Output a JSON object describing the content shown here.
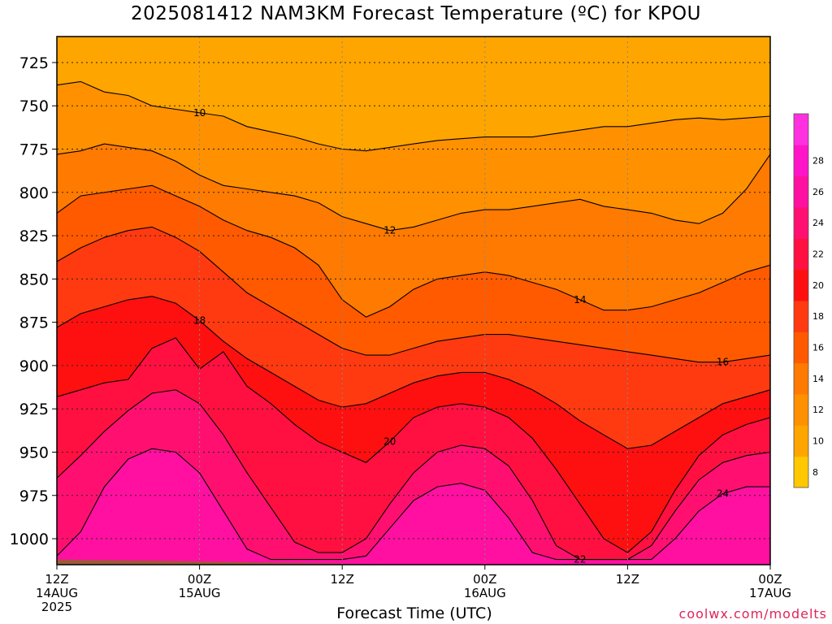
{
  "chart_data": {
    "type": "heatmap",
    "title": "2025081412 NAM3KM Forecast Temperature (ºC) for KPOU",
    "xlabel": "Forecast Time (UTC)",
    "ylabel": "",
    "credit": "coolwx.com/modelts",
    "y_axis": {
      "ticks": [
        725,
        750,
        775,
        800,
        825,
        850,
        875,
        900,
        925,
        950,
        975,
        1000
      ],
      "range": [
        710,
        1015
      ],
      "grid": true
    },
    "x_axis": {
      "range_hours": [
        0,
        60
      ],
      "ticks": [
        {
          "hour": 0,
          "label": "12Z",
          "sub": "14AUG",
          "sub2": "2025"
        },
        {
          "hour": 12,
          "label": "00Z",
          "sub": "15AUG",
          "sub2": ""
        },
        {
          "hour": 24,
          "label": "12Z",
          "sub": "",
          "sub2": ""
        },
        {
          "hour": 36,
          "label": "00Z",
          "sub": "16AUG",
          "sub2": ""
        },
        {
          "hour": 48,
          "label": "12Z",
          "sub": "",
          "sub2": ""
        },
        {
          "hour": 60,
          "label": "00Z",
          "sub": "17AUG",
          "sub2": ""
        }
      ],
      "grid": true
    },
    "colorbar": {
      "labels": [
        "8",
        "10",
        "12",
        "14",
        "16",
        "18",
        "20",
        "22",
        "24",
        "26",
        "28"
      ],
      "levels": [
        8,
        10,
        12,
        14,
        16,
        18,
        20,
        22,
        24,
        26,
        28
      ],
      "colors": [
        "#ffc800",
        "#ffa500",
        "#ff9000",
        "#ff7a00",
        "#ff5a00",
        "#ff3a10",
        "#ff1010",
        "#ff1040",
        "#ff1070",
        "#ff10a0",
        "#ff14c8",
        "#ff30e0"
      ]
    },
    "isotherms": [
      {
        "value": 10,
        "label": "10",
        "hours": [
          0,
          2,
          4,
          6,
          8,
          10,
          12,
          14,
          16,
          18,
          20,
          22,
          24,
          26,
          28,
          30,
          32,
          34,
          36,
          38,
          40,
          42,
          44,
          46,
          48,
          50,
          52,
          54,
          56,
          58,
          60
        ],
        "pressure": [
          738,
          736,
          742,
          744,
          750,
          752,
          754,
          756,
          762,
          765,
          768,
          772,
          775,
          776,
          774,
          772,
          770,
          769,
          768,
          768,
          768,
          766,
          764,
          762,
          762,
          760,
          758,
          757,
          758,
          757,
          756
        ]
      },
      {
        "value": 12,
        "label": "12",
        "hours": [
          0,
          2,
          4,
          6,
          8,
          10,
          12,
          14,
          16,
          18,
          20,
          22,
          24,
          26,
          28,
          30,
          32,
          34,
          36,
          38,
          40,
          42,
          44,
          46,
          48,
          50,
          52,
          54,
          56,
          58,
          60
        ],
        "pressure": [
          778,
          776,
          772,
          774,
          776,
          782,
          790,
          796,
          798,
          800,
          802,
          806,
          814,
          818,
          822,
          820,
          816,
          812,
          810,
          810,
          808,
          806,
          804,
          808,
          810,
          812,
          816,
          818,
          812,
          798,
          778
        ]
      },
      {
        "value": 14,
        "label": "14",
        "hours": [
          0,
          2,
          4,
          6,
          8,
          10,
          12,
          14,
          16,
          18,
          20,
          22,
          24,
          26,
          28,
          30,
          32,
          34,
          36,
          38,
          40,
          42,
          44,
          46,
          48,
          50,
          52,
          54,
          56,
          58,
          60
        ],
        "pressure": [
          812,
          802,
          800,
          798,
          796,
          802,
          808,
          816,
          822,
          826,
          832,
          842,
          862,
          872,
          866,
          856,
          850,
          848,
          846,
          848,
          852,
          856,
          862,
          868,
          868,
          866,
          862,
          858,
          852,
          846,
          842
        ]
      },
      {
        "value": 16,
        "label": "16",
        "hours": [
          0,
          2,
          4,
          6,
          8,
          10,
          12,
          14,
          16,
          18,
          20,
          22,
          24,
          26,
          28,
          30,
          32,
          34,
          36,
          38,
          40,
          42,
          44,
          46,
          48,
          50,
          52,
          54,
          56,
          58,
          60
        ],
        "pressure": [
          840,
          832,
          826,
          822,
          820,
          826,
          834,
          846,
          858,
          866,
          874,
          882,
          890,
          894,
          894,
          890,
          886,
          884,
          882,
          882,
          884,
          886,
          888,
          890,
          892,
          894,
          896,
          898,
          898,
          896,
          894
        ]
      },
      {
        "value": 18,
        "label": "18",
        "hours": [
          0,
          2,
          4,
          6,
          8,
          10,
          12,
          14,
          16,
          18,
          20,
          22,
          24,
          26,
          28,
          30,
          32,
          34,
          36,
          38,
          40,
          42,
          44,
          46,
          48,
          50,
          52,
          54,
          56,
          58,
          60
        ],
        "pressure": [
          878,
          870,
          866,
          862,
          860,
          864,
          874,
          886,
          896,
          904,
          912,
          920,
          924,
          922,
          916,
          910,
          906,
          904,
          904,
          908,
          914,
          922,
          932,
          940,
          948,
          946,
          938,
          930,
          922,
          918,
          914
        ]
      },
      {
        "value": 20,
        "label": "20",
        "hours": [
          0,
          2,
          4,
          6,
          8,
          10,
          12,
          14,
          16,
          18,
          20,
          22,
          24,
          26,
          28,
          30,
          32,
          34,
          36,
          38,
          40,
          42,
          44,
          46,
          48,
          50,
          52,
          54,
          56,
          58,
          60
        ],
        "pressure": [
          918,
          914,
          910,
          908,
          890,
          884,
          902,
          892,
          912,
          922,
          934,
          944,
          950,
          956,
          944,
          930,
          924,
          922,
          924,
          930,
          942,
          960,
          980,
          1000,
          1008,
          996,
          972,
          952,
          940,
          934,
          930
        ]
      },
      {
        "value": 22,
        "label": "22",
        "hours": [
          0,
          2,
          4,
          6,
          8,
          10,
          12,
          14,
          16,
          18,
          20,
          22,
          24,
          26,
          28,
          30,
          32,
          34,
          36,
          38,
          40,
          42,
          44,
          46,
          48,
          50,
          52,
          54,
          56,
          58,
          60
        ],
        "pressure": [
          965,
          952,
          938,
          926,
          916,
          914,
          922,
          940,
          962,
          982,
          1002,
          1008,
          1008,
          1000,
          980,
          962,
          950,
          946,
          948,
          958,
          978,
          1004,
          1012,
          1012,
          1012,
          1004,
          984,
          966,
          956,
          952,
          950
        ]
      },
      {
        "value": 24,
        "label": "24",
        "hours": [
          0,
          2,
          4,
          6,
          8,
          10,
          12,
          14,
          16,
          18,
          20,
          22,
          24,
          26,
          28,
          30,
          32,
          34,
          36,
          38,
          40,
          42,
          44,
          46,
          48,
          50,
          52,
          54,
          56,
          58,
          60
        ],
        "pressure": [
          1010,
          996,
          970,
          954,
          948,
          950,
          962,
          984,
          1006,
          1012,
          1012,
          1012,
          1012,
          1010,
          994,
          978,
          970,
          968,
          972,
          988,
          1008,
          1012,
          1012,
          1012,
          1012,
          1012,
          1000,
          984,
          974,
          970,
          970
        ]
      }
    ],
    "terrain_color": "#a0583a"
  }
}
